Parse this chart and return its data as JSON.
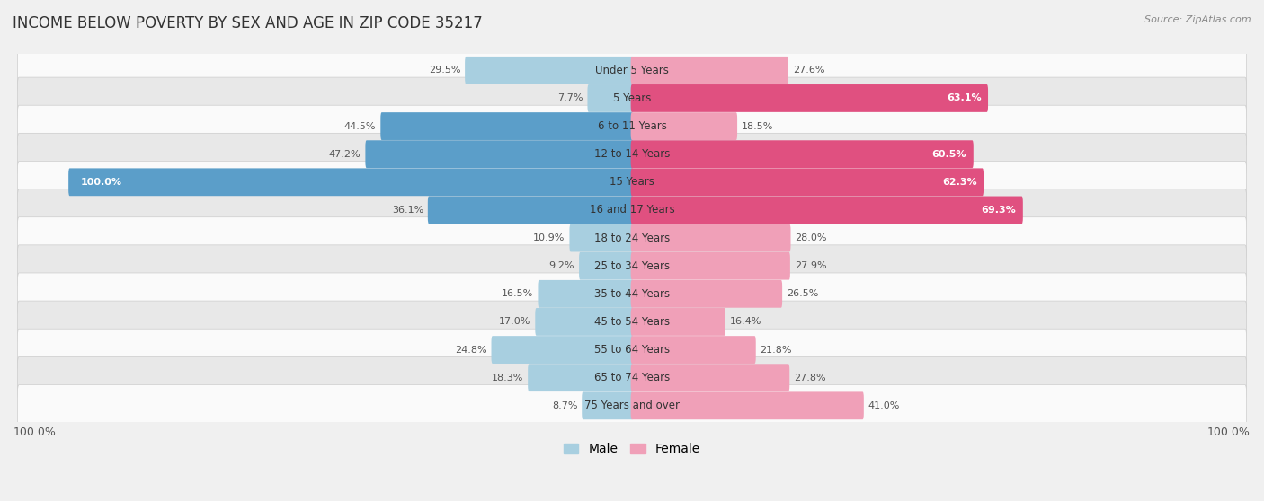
{
  "title": "INCOME BELOW POVERTY BY SEX AND AGE IN ZIP CODE 35217",
  "source": "Source: ZipAtlas.com",
  "categories": [
    "Under 5 Years",
    "5 Years",
    "6 to 11 Years",
    "12 to 14 Years",
    "15 Years",
    "16 and 17 Years",
    "18 to 24 Years",
    "25 to 34 Years",
    "35 to 44 Years",
    "45 to 54 Years",
    "55 to 64 Years",
    "65 to 74 Years",
    "75 Years and over"
  ],
  "male_values": [
    29.5,
    7.7,
    44.5,
    47.2,
    100.0,
    36.1,
    10.9,
    9.2,
    16.5,
    17.0,
    24.8,
    18.3,
    8.7
  ],
  "female_values": [
    27.6,
    63.1,
    18.5,
    60.5,
    62.3,
    69.3,
    28.0,
    27.9,
    26.5,
    16.4,
    21.8,
    27.8,
    41.0
  ],
  "male_color_dark": "#5b9ec9",
  "male_color_light": "#a8cfe0",
  "female_color_dark": "#e05080",
  "female_color_light": "#f0a0b8",
  "male_label": "Male",
  "female_label": "Female",
  "bg_color": "#f0f0f0",
  "row_color_light": "#fafafa",
  "row_color_dark": "#e8e8e8",
  "axis_max": 100.0,
  "bar_height": 0.55,
  "title_fontsize": 12,
  "source_fontsize": 8,
  "label_fontsize": 9,
  "category_fontsize": 8.5,
  "value_fontsize": 8
}
